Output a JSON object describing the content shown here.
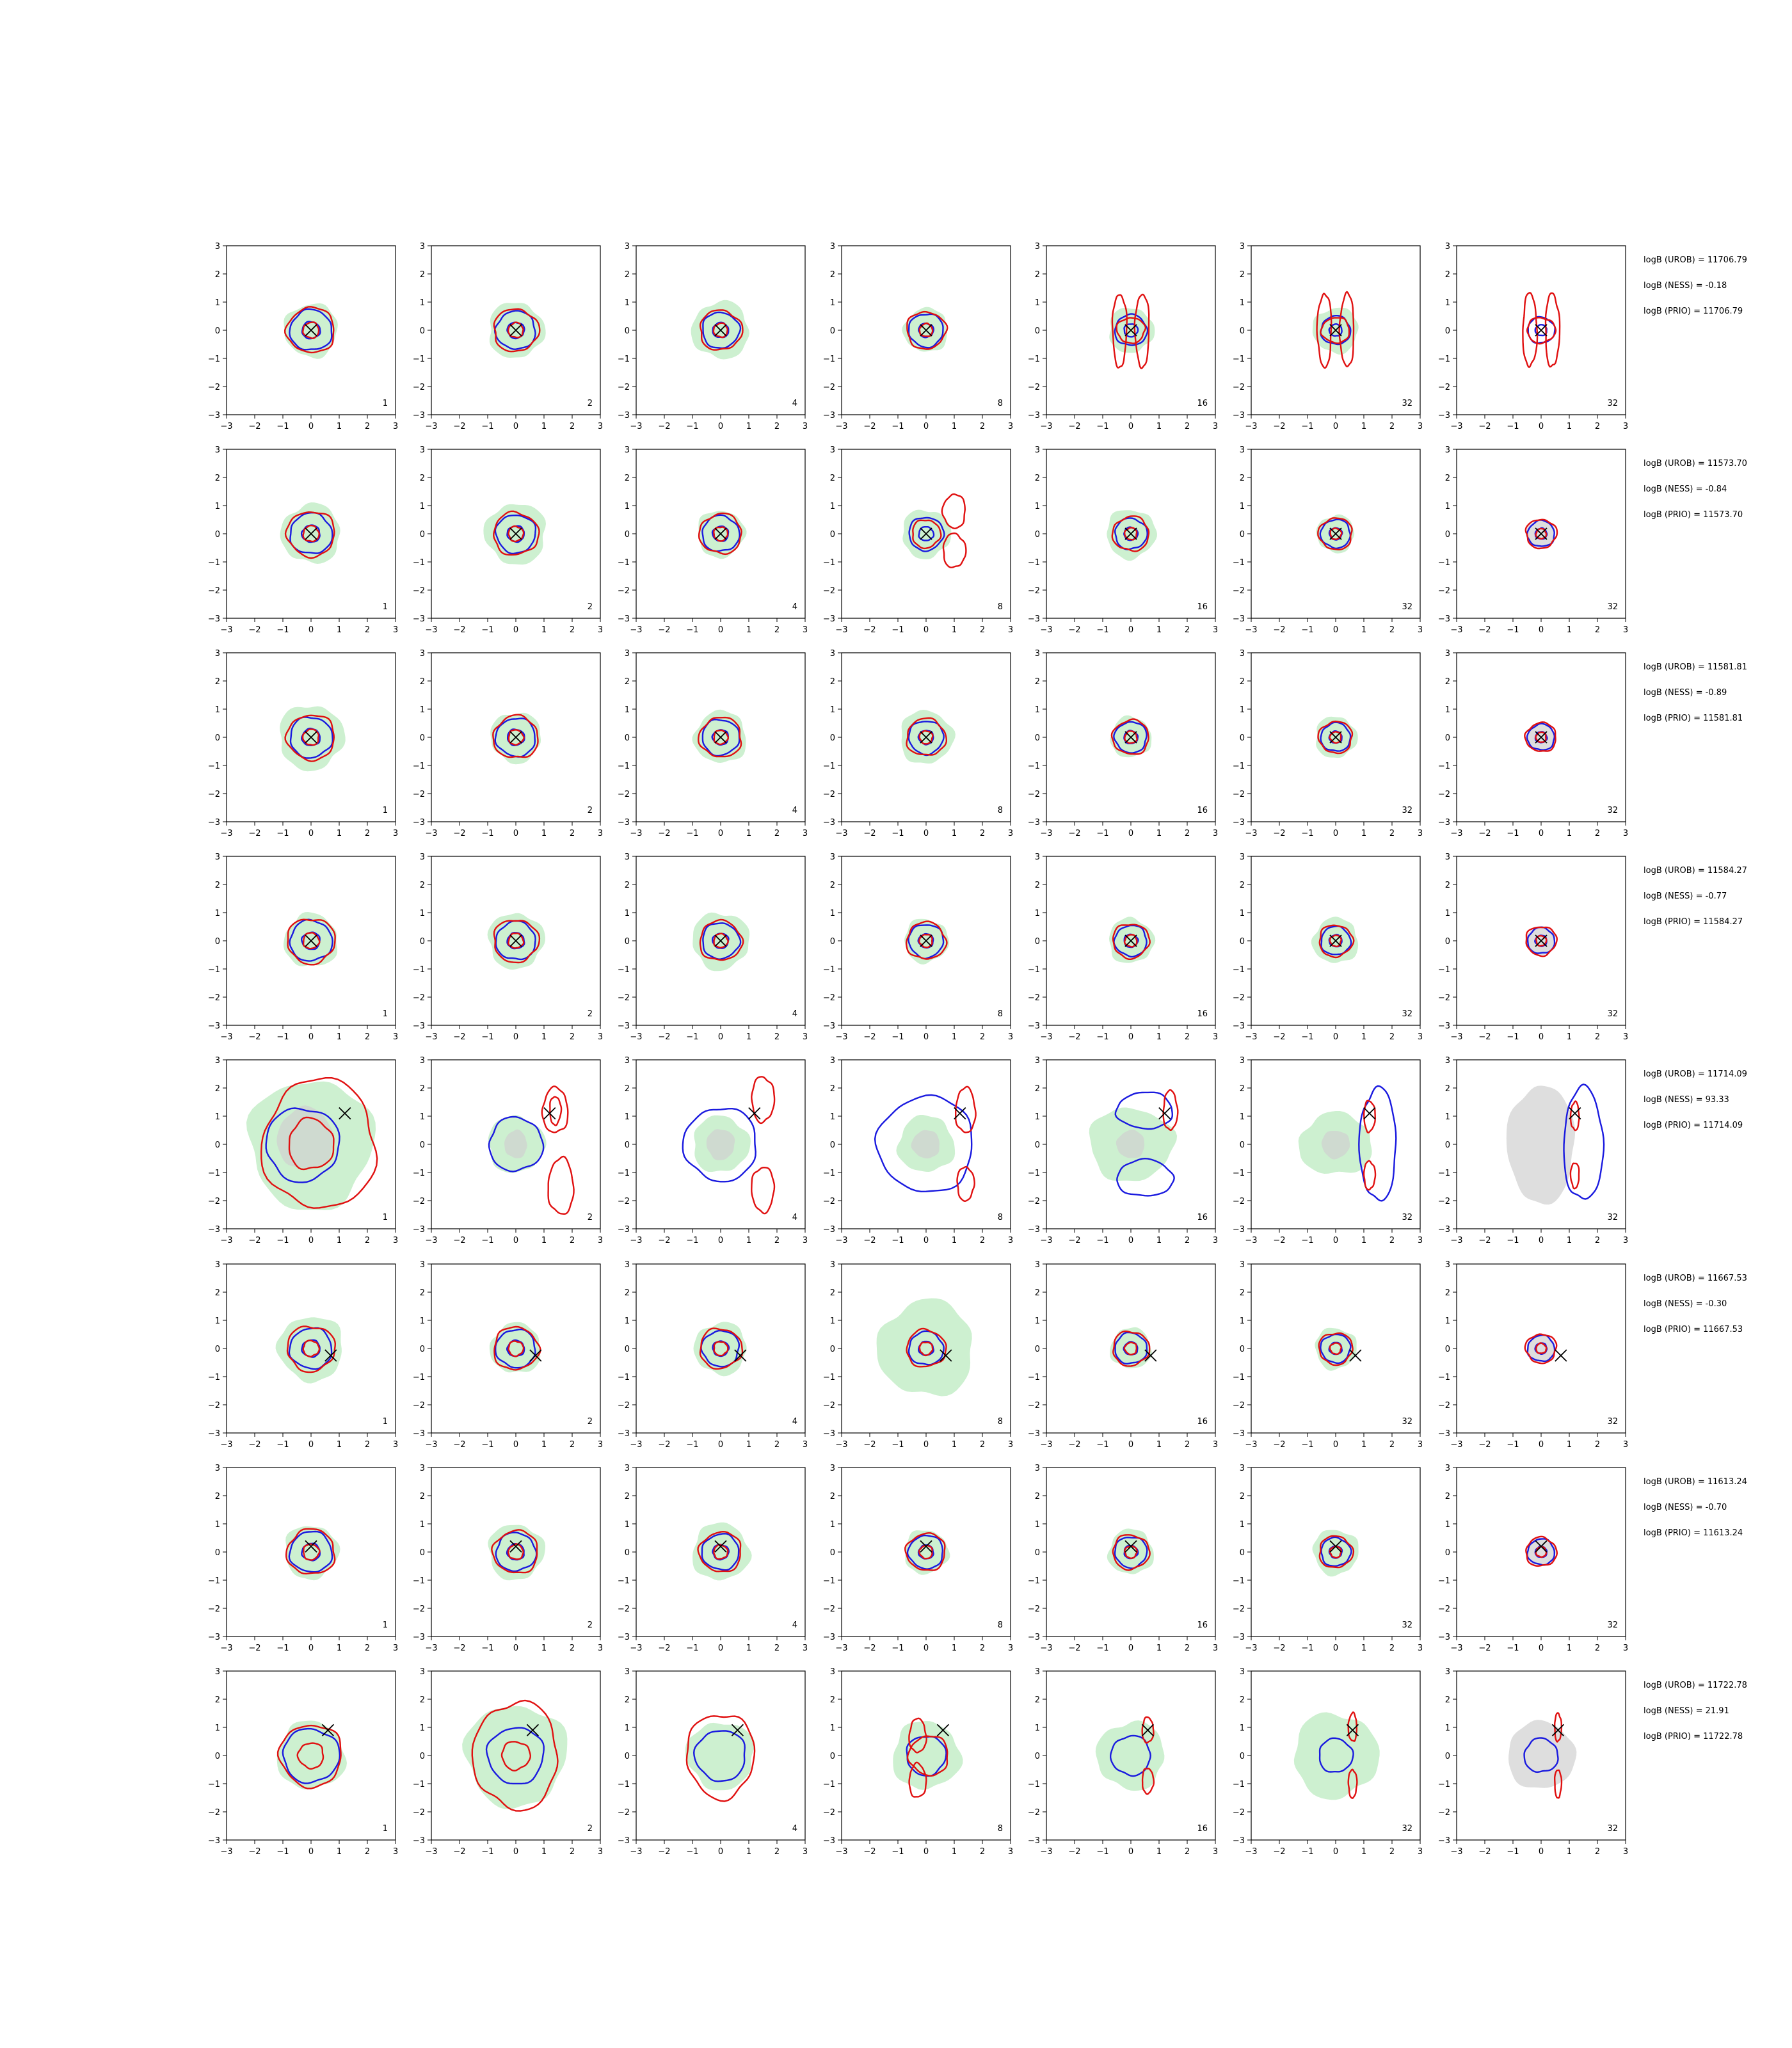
{
  "chart_data": {
    "type": "contour-grid",
    "title": "",
    "xlabel": "",
    "ylabel": "",
    "xlim": [
      -3,
      3
    ],
    "ylim": [
      -3,
      3
    ],
    "ticks": [
      "−3",
      "−2",
      "−1",
      "0",
      "1",
      "2",
      "3"
    ],
    "grid": false,
    "colors": {
      "fill": "#cdf0d0",
      "blue": "#1a1adf",
      "red": "#e01010",
      "grey": "#d0d0d0",
      "marker": "#000000"
    },
    "column_labels": [
      "1",
      "2",
      "4",
      "8",
      "16",
      "32",
      "32"
    ],
    "rows": [
      {
        "truth": [
          0.0,
          0.0
        ],
        "logB": [
          "logB (UROB) = 11706.79",
          "logB (NESS) = -0.18",
          "logB (PRIO) = 11706.79"
        ]
      },
      {
        "truth": [
          0.0,
          0.0
        ],
        "logB": [
          "logB (UROB) = 11573.70",
          "logB (NESS) = -0.84",
          "logB (PRIO) = 11573.70"
        ]
      },
      {
        "truth": [
          0.0,
          0.0
        ],
        "logB": [
          "logB (UROB) = 11581.81",
          "logB (NESS) = -0.89",
          "logB (PRIO) = 11581.81"
        ]
      },
      {
        "truth": [
          0.0,
          0.0
        ],
        "logB": [
          "logB (UROB) = 11584.27",
          "logB (NESS) = -0.77",
          "logB (PRIO) = 11584.27"
        ]
      },
      {
        "truth": [
          1.2,
          1.1
        ],
        "logB": [
          "logB (UROB) = 11714.09",
          "logB (NESS) = 93.33",
          "logB (PRIO) = 11714.09"
        ]
      },
      {
        "truth": [
          0.7,
          -0.25
        ],
        "logB": [
          "logB (UROB) = 11667.53",
          "logB (NESS) = -0.30",
          "logB (PRIO) = 11667.53"
        ]
      },
      {
        "truth": [
          0.0,
          0.2
        ],
        "logB": [
          "logB (UROB) = 11613.24",
          "logB (NESS) = -0.70",
          "logB (PRIO) = 11613.24"
        ]
      },
      {
        "truth": [
          0.6,
          0.9
        ],
        "logB": [
          "logB (UROB) = 11722.78",
          "logB (NESS) = 21.91",
          "logB (PRIO) = 11722.78"
        ]
      }
    ]
  }
}
